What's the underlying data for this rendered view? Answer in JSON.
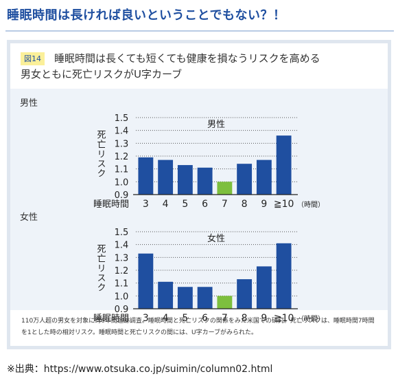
{
  "heading": "睡眠時間は長ければ良いということでもない？！",
  "figure": {
    "badge": "図14",
    "title": "睡眠時間は長くても短くても健康を損なうリスクを高める",
    "subtitle": "男女ともに死亡リスクがU字カーブ",
    "footnote": "110万人超の男女を対象に約6年間追跡調査。睡眠時間と死亡リスクの関係をみた米国での研究。死亡リスクは、睡眠時間7時間を1とした時の相対リスク。睡眠時間と死亡リスクの間には、U字カーブがみられた。"
  },
  "chart_data": [
    {
      "type": "bar",
      "panel_label": "男性",
      "title": "男性",
      "ylabel": "死亡リスク",
      "xlabel": "睡眠時間",
      "x_unit": "（時間）",
      "categories": [
        "3",
        "4",
        "5",
        "6",
        "7",
        "8",
        "9",
        "≧10"
      ],
      "values": [
        1.19,
        1.17,
        1.13,
        1.11,
        1.0,
        1.14,
        1.17,
        1.36
      ],
      "highlight_index": 4,
      "ylim": [
        0.9,
        1.5
      ],
      "yticks": [
        "0.9",
        "1.0",
        "1.1",
        "1.2",
        "1.3",
        "1.4",
        "1.5"
      ],
      "bar_color": "#1f4fa0",
      "highlight_color": "#7dbf3e"
    },
    {
      "type": "bar",
      "panel_label": "女性",
      "title": "女性",
      "ylabel": "死亡リスク",
      "xlabel": "睡眠時間",
      "x_unit": "（時間）",
      "categories": [
        "3",
        "4",
        "5",
        "6",
        "7",
        "8",
        "9",
        "≧10"
      ],
      "values": [
        1.33,
        1.11,
        1.07,
        1.07,
        1.0,
        1.13,
        1.23,
        1.41
      ],
      "highlight_index": 4,
      "ylim": [
        0.9,
        1.5
      ],
      "yticks": [
        "0.9",
        "1.0",
        "1.1",
        "1.2",
        "1.3",
        "1.4",
        "1.5"
      ],
      "bar_color": "#1f4fa0",
      "highlight_color": "#7dbf3e"
    }
  ],
  "source": "※出典：https://www.otsuka.co.jp/suimin/column02.html"
}
